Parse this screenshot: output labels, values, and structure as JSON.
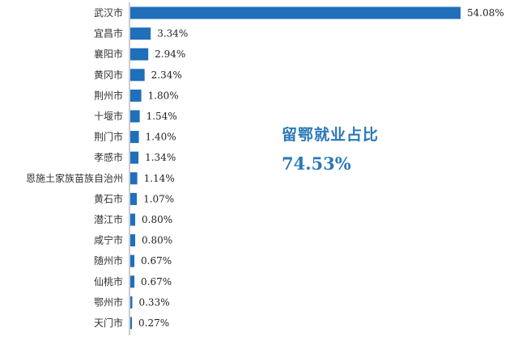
{
  "chart_data": {
    "type": "bar",
    "orientation": "horizontal",
    "categories": [
      "武汉市",
      "宜昌市",
      "襄阳市",
      "黄冈市",
      "荆州市",
      "十堰市",
      "荆门市",
      "孝感市",
      "恩施土家族苗族自治州",
      "黄石市",
      "潜江市",
      "咸宁市",
      "随州市",
      "仙桃市",
      "鄂州市",
      "天门市"
    ],
    "values": [
      54.08,
      3.34,
      2.94,
      2.34,
      1.8,
      1.54,
      1.4,
      1.34,
      1.14,
      1.07,
      0.8,
      0.8,
      0.67,
      0.67,
      0.33,
      0.27
    ],
    "value_labels": [
      "54.08%",
      "3.34%",
      "2.94%",
      "2.34%",
      "1.80%",
      "1.54%",
      "1.40%",
      "1.34%",
      "1.14%",
      "1.07%",
      "0.80%",
      "0.80%",
      "0.67%",
      "0.67%",
      "0.33%",
      "0.27%"
    ],
    "title": "",
    "xlabel": "",
    "ylabel": "",
    "xlim": [
      0,
      54.08
    ],
    "grid": false,
    "bar_color": "#1f6fba"
  },
  "callout": {
    "title": "留鄂就业占比",
    "value": "74.53%",
    "color": "#2b78b8"
  }
}
